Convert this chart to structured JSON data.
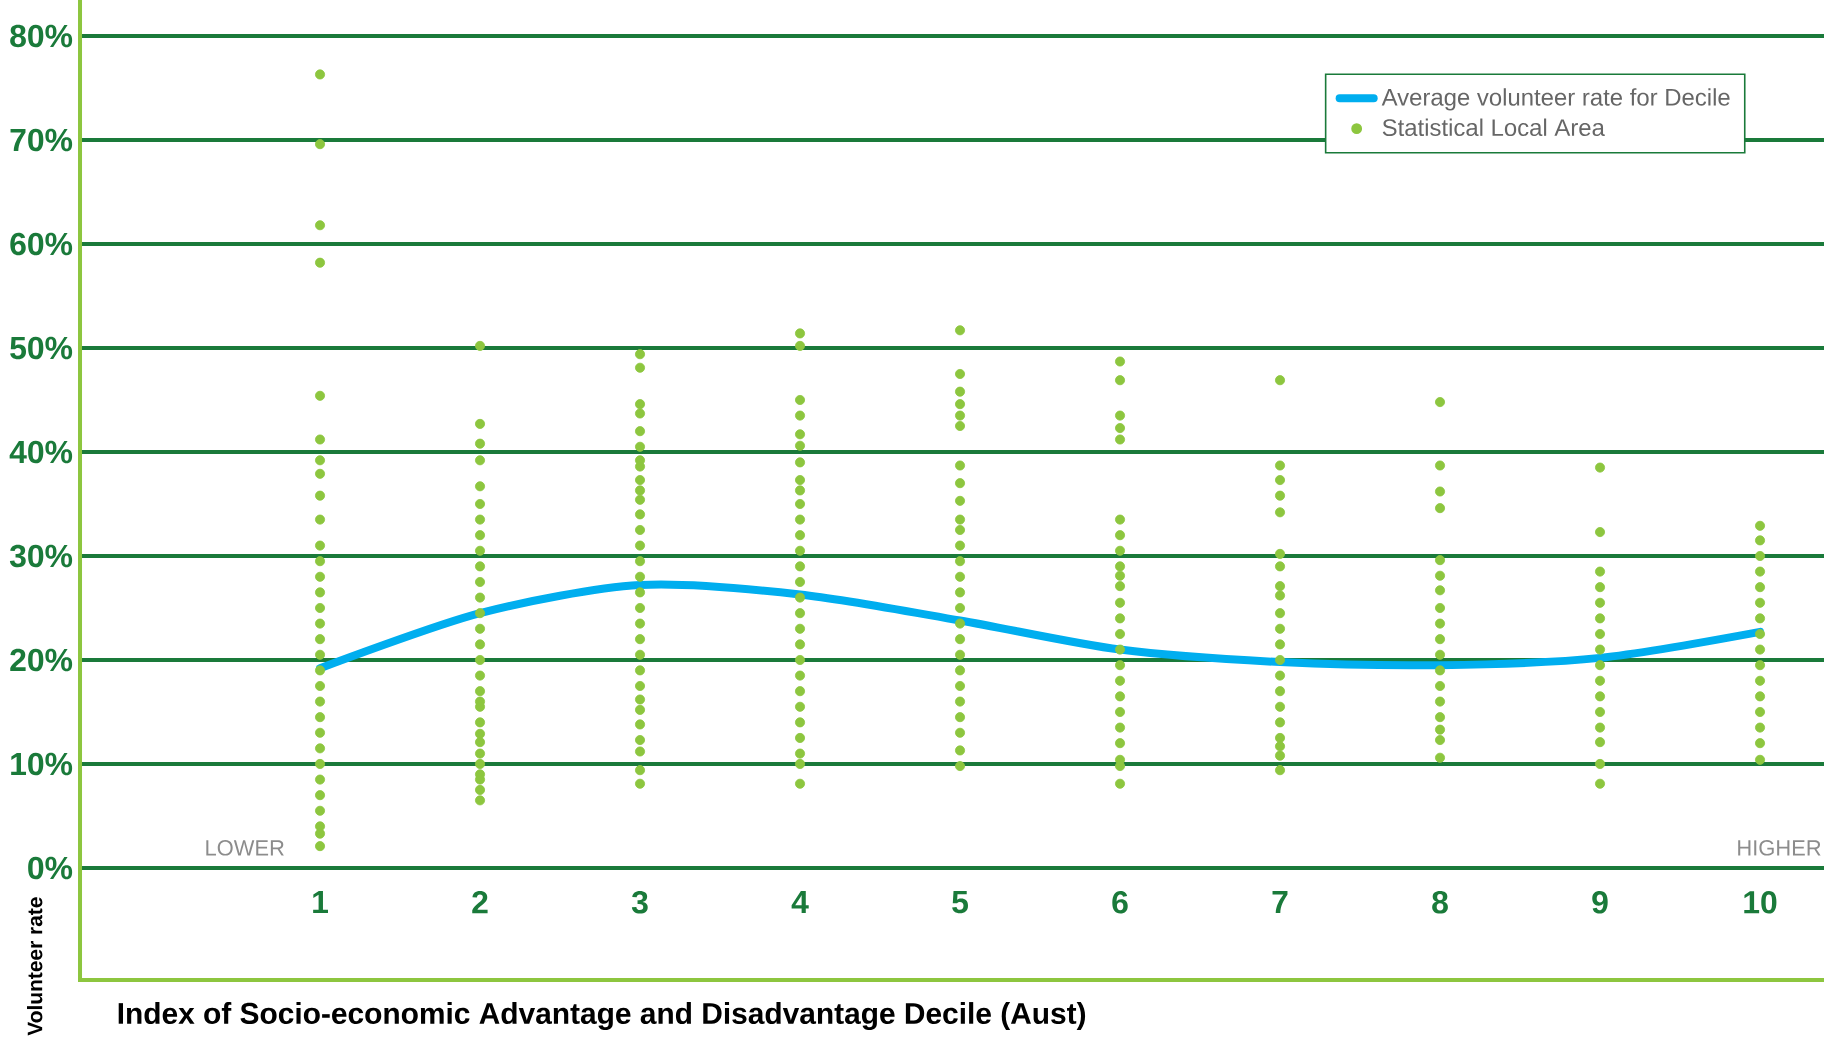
{
  "chart_data": {
    "type": "scatter",
    "xlabel": "Index of Socio-economic Advantage and Disadvantage Decile (Aust)",
    "ylabel": "Volunteer rate",
    "annotations": [
      "LOWER",
      "HIGHER"
    ],
    "xlim": [
      -0.5,
      10.4
    ],
    "xticks": [
      1,
      2,
      3,
      4,
      5,
      6,
      7,
      8,
      9,
      10
    ],
    "ylim": [
      0,
      80
    ],
    "yticks": [
      {
        "value": 0,
        "label": "0%"
      },
      {
        "value": 10,
        "label": "10%"
      },
      {
        "value": 20,
        "label": "20%"
      },
      {
        "value": 30,
        "label": "30%"
      },
      {
        "value": 40,
        "label": "40%"
      },
      {
        "value": 50,
        "label": "50%"
      },
      {
        "value": 60,
        "label": "60%"
      },
      {
        "value": 70,
        "label": "70%"
      },
      {
        "value": 80,
        "label": "80%"
      }
    ],
    "grid": "y",
    "legend": "top right",
    "series": [
      {
        "name": "Average volunteer rate for Decile",
        "type": "line",
        "color": "#00aeef",
        "marker": "none",
        "x": [
          1,
          2,
          3,
          4,
          5,
          6,
          7,
          8,
          9,
          10
        ],
        "values": [
          19.2,
          24.5,
          27.2,
          26.3,
          23.8,
          21,
          19.8,
          19.5,
          20.2,
          22.7
        ]
      },
      {
        "name": "Statistical Local Area",
        "color": "#8dc63f",
        "marker": "circle",
        "x": [
          1,
          1,
          1,
          1,
          1,
          1,
          1,
          1,
          1,
          1,
          1,
          1,
          1,
          1,
          1,
          1,
          1,
          1,
          1,
          1,
          1,
          1,
          1,
          1,
          1,
          1,
          1,
          1,
          1,
          1,
          1,
          2,
          2,
          2,
          2,
          2,
          2,
          2,
          2,
          2,
          2,
          2,
          2,
          2,
          2,
          2,
          2,
          2,
          2,
          2,
          2,
          2,
          2,
          2,
          2,
          2,
          2,
          2,
          2,
          2,
          3,
          3,
          3,
          3,
          3,
          3,
          3,
          3,
          3,
          3,
          3,
          3,
          3,
          3,
          3,
          3,
          3,
          3,
          3,
          3,
          3,
          3,
          3,
          3,
          3,
          3,
          3,
          3,
          3,
          3,
          4,
          4,
          4,
          4,
          4,
          4,
          4,
          4,
          4,
          4,
          4,
          4,
          4,
          4,
          4,
          4,
          4,
          4,
          4,
          4,
          4,
          4,
          4,
          4,
          4,
          4,
          4,
          4,
          5,
          5,
          5,
          5,
          5,
          5,
          5,
          5,
          5,
          5,
          5,
          5,
          5,
          5,
          5,
          5,
          5,
          5,
          5,
          5,
          5,
          5,
          5,
          5,
          5,
          5,
          6,
          6,
          6,
          6,
          6,
          6,
          6,
          6,
          6,
          6,
          6,
          6,
          6,
          6,
          6,
          6,
          6,
          6,
          6,
          6,
          6,
          6,
          6,
          6,
          7,
          7,
          7,
          7,
          7,
          7,
          7,
          7,
          7,
          7,
          7,
          7,
          7,
          7,
          7,
          7,
          7,
          7,
          7,
          7,
          7,
          8,
          8,
          8,
          8,
          8,
          8,
          8,
          8,
          8,
          8,
          8,
          8,
          8,
          8,
          8,
          8,
          8,
          8,
          9,
          9,
          9,
          9,
          9,
          9,
          9,
          9,
          9,
          9,
          9,
          9,
          9,
          9,
          9,
          9,
          10,
          10,
          10,
          10,
          10,
          10,
          10,
          10,
          10,
          10,
          10,
          10,
          10,
          10,
          10,
          10
        ],
        "values": [
          76.3,
          69.6,
          61.8,
          58.2,
          45.4,
          41.2,
          39.2,
          37.9,
          35.8,
          33.5,
          31,
          29.5,
          28,
          26.5,
          25,
          23.5,
          22,
          20.5,
          19,
          17.5,
          16,
          14.5,
          13,
          11.5,
          10,
          8.5,
          7,
          5.5,
          4,
          3.3,
          2.1,
          50.2,
          42.7,
          40.8,
          39.2,
          36.7,
          35,
          33.5,
          32,
          30.5,
          29,
          27.5,
          26,
          24.5,
          23,
          21.5,
          20,
          18.5,
          17,
          16,
          15.5,
          14,
          12.9,
          12.1,
          11,
          10,
          9,
          8.5,
          7.5,
          6.5,
          49.4,
          48.1,
          44.6,
          43.7,
          42,
          40.5,
          39.2,
          38.6,
          37.3,
          36.3,
          35.4,
          34,
          32.5,
          31,
          29.5,
          28,
          26.5,
          25,
          23.5,
          22,
          20.5,
          19,
          17.5,
          16.2,
          15.2,
          13.8,
          12.3,
          11.2,
          9.4,
          8.1,
          51.4,
          50.2,
          45,
          43.5,
          41.7,
          40.6,
          39,
          37.3,
          36.3,
          35,
          33.5,
          32,
          30.5,
          29,
          27.5,
          26,
          24.5,
          23,
          21.5,
          20,
          18.5,
          17,
          15.5,
          14,
          12.5,
          11,
          10,
          8.1,
          51.7,
          47.5,
          45.8,
          44.6,
          43.5,
          42.5,
          38.7,
          37,
          35.3,
          33.5,
          32.5,
          31,
          29.5,
          28,
          26.5,
          25,
          23.5,
          22,
          20.5,
          19,
          17.5,
          16,
          14.5,
          13,
          11.3,
          9.8,
          48.7,
          46.9,
          43.5,
          42.3,
          41.2,
          33.5,
          32,
          30.5,
          29,
          28.1,
          27.1,
          25.5,
          24,
          22.5,
          21,
          19.5,
          18,
          16.5,
          15,
          13.5,
          12,
          10.4,
          9.8,
          8.1,
          46.9,
          38.7,
          37.3,
          35.8,
          34.2,
          30.2,
          29,
          27.1,
          26.2,
          24.5,
          23,
          21.5,
          20,
          18.5,
          17,
          15.5,
          14,
          12.5,
          11.7,
          10.8,
          9.4,
          44.8,
          38.7,
          36.2,
          34.6,
          29.6,
          28.1,
          26.7,
          25,
          23.5,
          22,
          20.5,
          19,
          17.5,
          16,
          14.5,
          13.3,
          12.3,
          10.6,
          38.5,
          32.3,
          28.5,
          27,
          25.5,
          24,
          22.5,
          21,
          19.5,
          18,
          16.5,
          15,
          13.5,
          12.1,
          10,
          8.1,
          32.9,
          31.5,
          30,
          28.5,
          27,
          25.5,
          24,
          22.5,
          21,
          19.5,
          18,
          16.5,
          15,
          13.5,
          12,
          10.4
        ]
      }
    ]
  }
}
